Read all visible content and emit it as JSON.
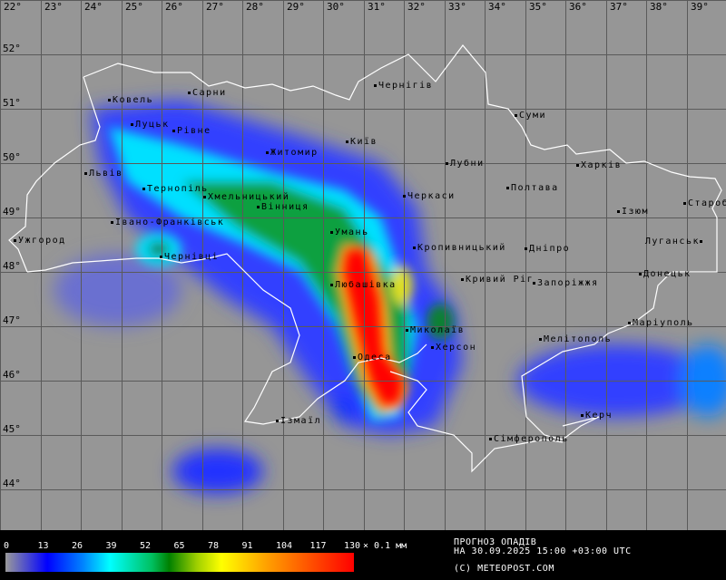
{
  "map": {
    "type": "precipitation forecast",
    "longitude_labels": [
      "22°",
      "23°",
      "24°",
      "25°",
      "26°",
      "27°",
      "28°",
      "29°",
      "30°",
      "31°",
      "32°",
      "33°",
      "34°",
      "35°",
      "36°",
      "37°",
      "38°",
      "39°"
    ],
    "latitude_labels": [
      "52°",
      "51°",
      "50°",
      "49°",
      "48°",
      "47°",
      "46°",
      "45°",
      "44°"
    ],
    "cities": [
      "Ковель",
      "Сарни",
      "Луцьк",
      "Рівне",
      "Житомир",
      "Київ",
      "Чернігів",
      "Суми",
      "Львів",
      "Тернопіль",
      "Хмельницький",
      "Вінниця",
      "Черкаси",
      "Лубни",
      "Полтава",
      "Харків",
      "Ізюм",
      "Староб",
      "Луганськ",
      "Івано-Франківськ",
      "Ужгород",
      "Умань",
      "Чернівці",
      "Кропивницький",
      "Дніпро",
      "Кривий Ріг",
      "Запоріжжя",
      "Донецьк",
      "Любашівка",
      "Маріуполь",
      "Мелітополь",
      "Миколаїв",
      "Херсон",
      "Одеса",
      "Ізмаїл",
      "Керч",
      "Сімферополь"
    ],
    "colors": {
      "background": "#969696",
      "border": "#ffffff",
      "low": "#0000ff",
      "mid": "#00ffff",
      "green": "#008000",
      "high": "#ff0000"
    }
  },
  "legend": {
    "ticks": [
      "0",
      "13",
      "26",
      "39",
      "52",
      "65",
      "78",
      "91",
      "104",
      "117",
      "130"
    ],
    "unit": "× 0.1 мм",
    "title": "ПРОГНОЗ ОПАДІВ",
    "date": "НА 30.09.2025 15:00 +03:00 UTC",
    "copyright": "(C) METEOPOST.COM"
  }
}
